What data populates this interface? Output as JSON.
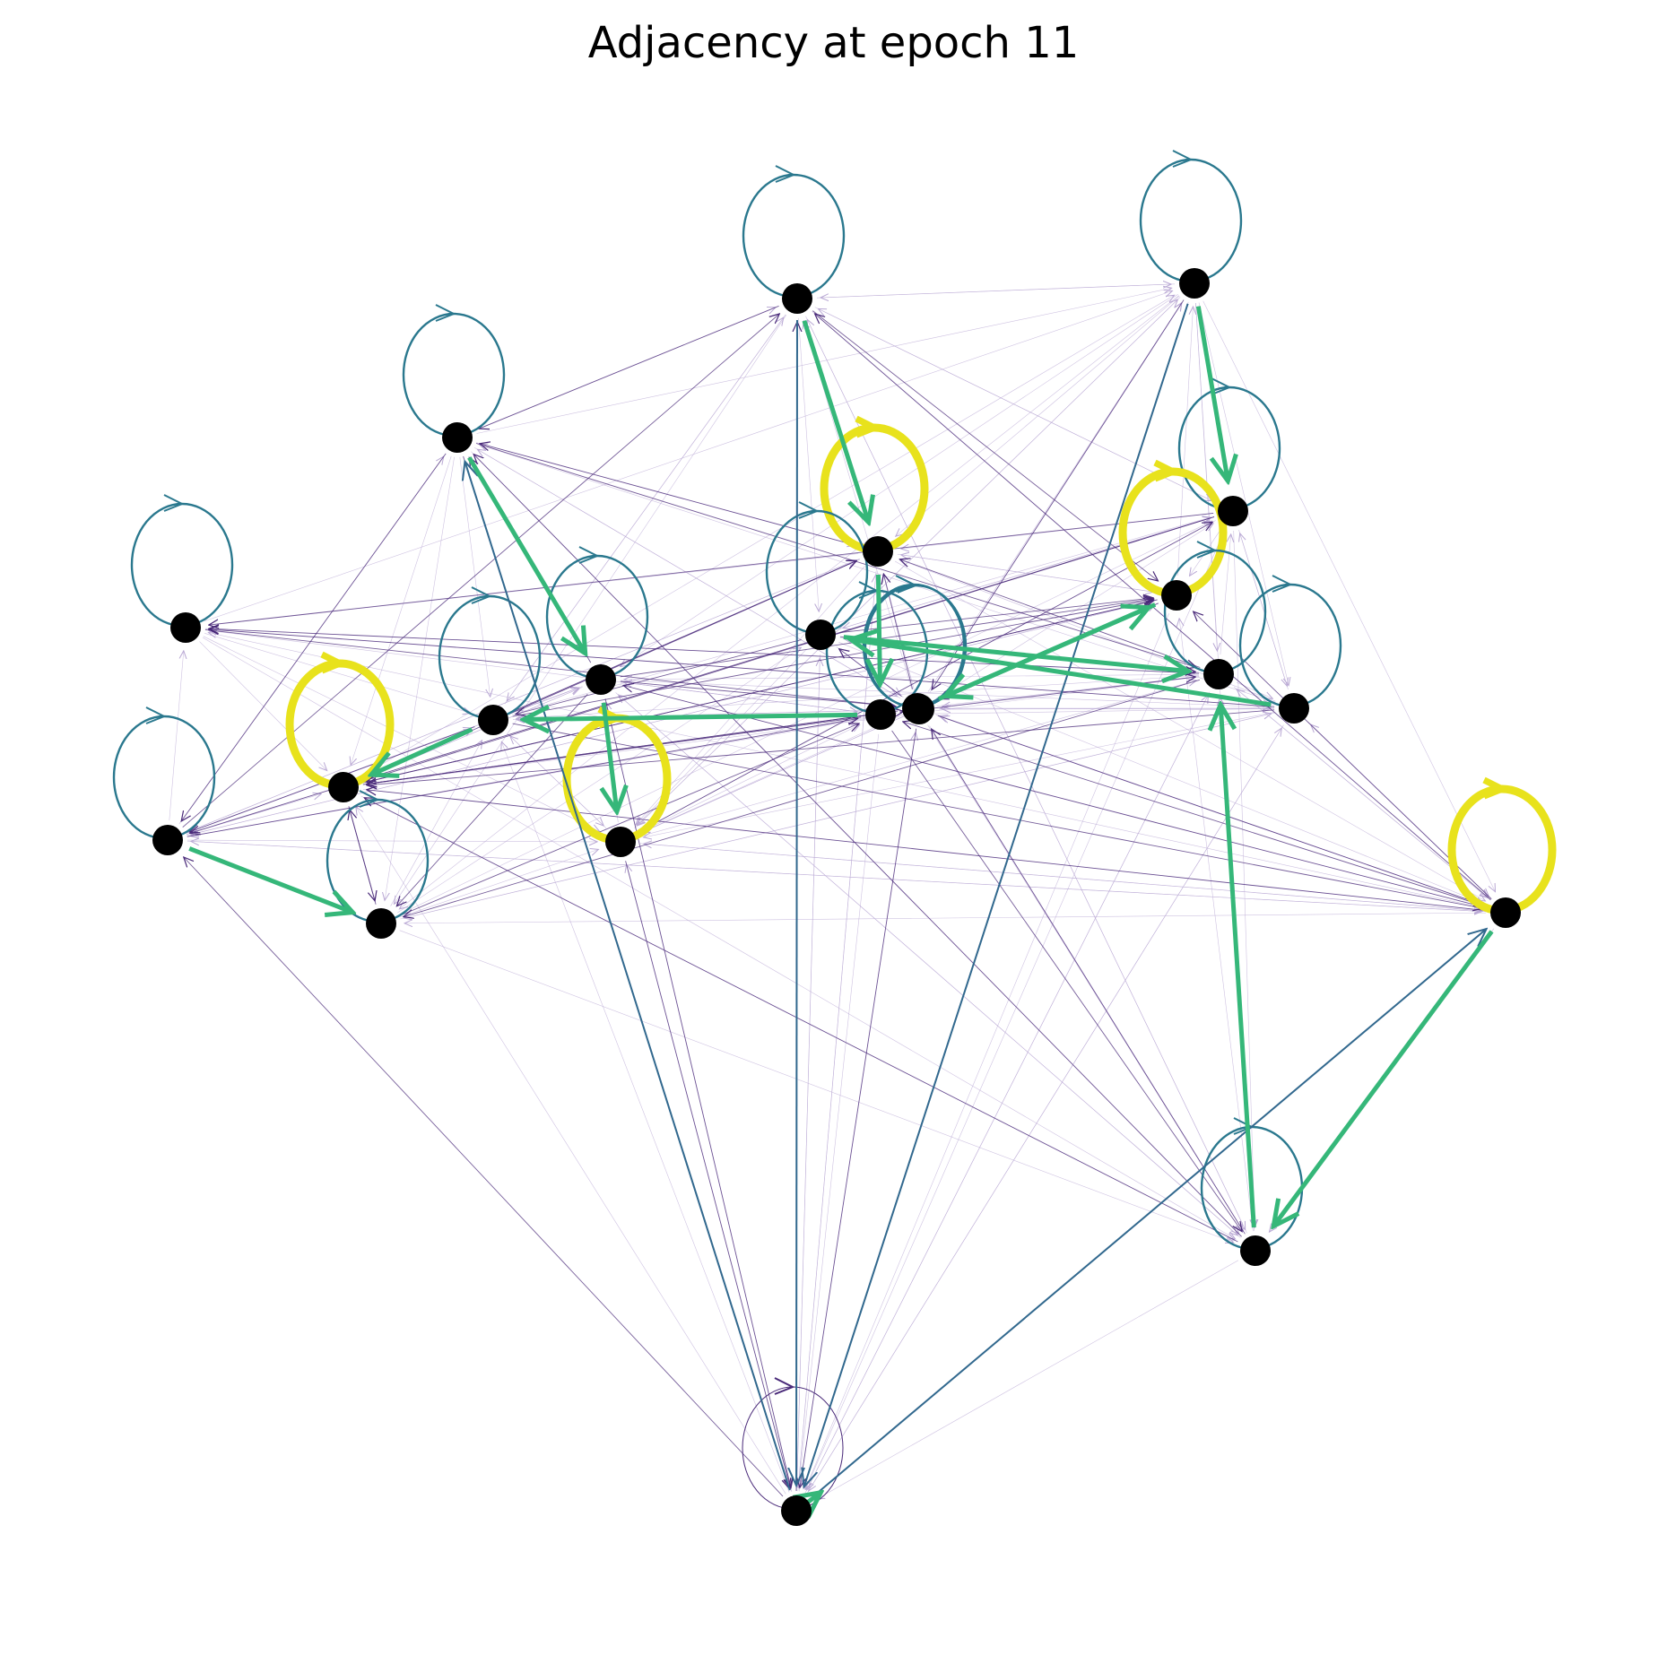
{
  "title": "Adjacency at epoch 11",
  "colors": {
    "node": "#000000",
    "strong_self_loop": "#e8e21c",
    "medium_self_loop": "#2a788e",
    "strong_edge": "#35b779",
    "medium_edge": "#31688e",
    "weak_edge": "#482878",
    "faint_edge": "#b9a8d4"
  },
  "graph": {
    "node_count": 23,
    "nodes": [
      {
        "id": "n0",
        "self_weight": 0.5
      },
      {
        "id": "n1",
        "self_weight": 0.5
      },
      {
        "id": "n2",
        "self_weight": 0.5
      },
      {
        "id": "n3",
        "self_weight": 0.5
      },
      {
        "id": "n4",
        "self_weight": 0.5
      },
      {
        "id": "n5",
        "self_weight": 1.0
      },
      {
        "id": "n6",
        "self_weight": 0.5
      },
      {
        "id": "n7",
        "self_weight": 1.0
      },
      {
        "id": "n8",
        "self_weight": 0.5
      },
      {
        "id": "n9",
        "self_weight": 0.5
      },
      {
        "id": "n10",
        "self_weight": 1.0
      },
      {
        "id": "n11",
        "self_weight": 0.5
      },
      {
        "id": "n12",
        "self_weight": 0.5
      },
      {
        "id": "n13",
        "self_weight": 1.0
      },
      {
        "id": "n14",
        "self_weight": 0.5
      },
      {
        "id": "n15",
        "self_weight": 0.5
      },
      {
        "id": "n16",
        "self_weight": 0.5
      },
      {
        "id": "n17",
        "self_weight": 0.5
      },
      {
        "id": "n18",
        "self_weight": 1.0
      },
      {
        "id": "n19",
        "self_weight": 0.5
      },
      {
        "id": "n20",
        "self_weight": 0.5
      },
      {
        "id": "n21",
        "self_weight": 0.15
      },
      {
        "id": "n22",
        "self_weight": 0.5
      }
    ],
    "strong_edges": [
      {
        "source": "n0",
        "target": "n7",
        "weight": 0.75
      },
      {
        "source": "n1",
        "target": "n12",
        "weight": 0.75
      },
      {
        "source": "n2",
        "target": "n8",
        "weight": 0.75
      },
      {
        "source": "n4",
        "target": "n6",
        "weight": 0.75
      },
      {
        "source": "n8",
        "target": "n10",
        "weight": 0.75
      },
      {
        "source": "n7",
        "target": "n15",
        "weight": 0.75
      },
      {
        "source": "n15",
        "target": "n9",
        "weight": 0.75
      },
      {
        "source": "n9",
        "target": "n5",
        "weight": 0.75
      },
      {
        "source": "n17",
        "target": "n11",
        "weight": 0.75
      },
      {
        "source": "n11",
        "target": "n16",
        "weight": 0.75
      },
      {
        "source": "n13",
        "target": "n19",
        "weight": 0.75
      },
      {
        "source": "n20",
        "target": "n16",
        "weight": 0.75
      },
      {
        "source": "n19",
        "target": "n13",
        "weight": 0.75
      },
      {
        "source": "n22",
        "target": "n21",
        "weight": 0.8
      },
      {
        "source": "n18",
        "target": "n20",
        "weight": 0.75
      }
    ],
    "medium_edges": [
      {
        "source": "n0",
        "target": "n21",
        "weight": 0.35
      },
      {
        "source": "n21",
        "target": "n2",
        "weight": 0.35
      },
      {
        "source": "n1",
        "target": "n21",
        "weight": 0.3
      },
      {
        "source": "n21",
        "target": "n18",
        "weight": 0.35
      }
    ]
  }
}
